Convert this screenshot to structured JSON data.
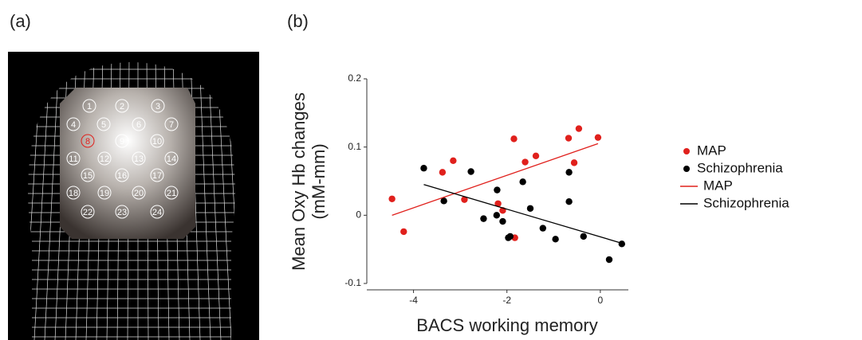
{
  "panel_a": {
    "label": "(a)",
    "channels": [
      {
        "label": "1",
        "color": "#ffffff"
      },
      {
        "label": "2",
        "color": "#ffffff"
      },
      {
        "label": "3",
        "color": "#ffffff"
      },
      {
        "label": "4",
        "color": "#ffffff"
      },
      {
        "label": "5",
        "color": "#ffffff"
      },
      {
        "label": "6",
        "color": "#ffffff"
      },
      {
        "label": "7",
        "color": "#ffffff"
      },
      {
        "label": "8",
        "color": "#e0201c"
      },
      {
        "label": "9",
        "color": "#ffffff"
      },
      {
        "label": "10",
        "color": "#ffffff"
      },
      {
        "label": "11",
        "color": "#ffffff"
      },
      {
        "label": "12",
        "color": "#ffffff"
      },
      {
        "label": "13",
        "color": "#ffffff"
      },
      {
        "label": "14",
        "color": "#ffffff"
      },
      {
        "label": "15",
        "color": "#ffffff"
      },
      {
        "label": "16",
        "color": "#ffffff"
      },
      {
        "label": "17",
        "color": "#ffffff"
      },
      {
        "label": "18",
        "color": "#ffffff"
      },
      {
        "label": "19",
        "color": "#ffffff"
      },
      {
        "label": "20",
        "color": "#ffffff"
      },
      {
        "label": "21",
        "color": "#ffffff"
      },
      {
        "label": "22",
        "color": "#ffffff"
      },
      {
        "label": "23",
        "color": "#ffffff"
      },
      {
        "label": "24",
        "color": "#ffffff"
      }
    ]
  },
  "chart_data": {
    "type": "scatter",
    "panel_label": "(b)",
    "xlabel": "BACS working memory",
    "ylabel": [
      "Mean Oxy Hb changes",
      "(mM-mm)"
    ],
    "xlim": [
      -5,
      0.6
    ],
    "ylim": [
      -0.1,
      0.2
    ],
    "xticks": [
      -4,
      -2,
      0
    ],
    "yticks": [
      -0.1,
      0,
      0.1,
      0.2
    ],
    "series": [
      {
        "name": "MAP",
        "color": "#e0201c",
        "mode": "markers",
        "x": [
          -4.46,
          -4.21,
          -3.38,
          -3.15,
          -2.91,
          -1.85,
          -2.19,
          -2.09,
          -1.83,
          -1.38,
          -1.61,
          -0.68,
          -0.46,
          -0.56,
          -0.05
        ],
        "values": [
          0.024,
          -0.024,
          0.063,
          0.08,
          0.023,
          0.112,
          0.017,
          0.007,
          -0.033,
          0.087,
          0.078,
          0.113,
          0.127,
          0.077,
          0.114
        ]
      },
      {
        "name": "Schizophrenia",
        "color": "#000000",
        "mode": "markers",
        "x": [
          -3.78,
          -3.35,
          -2.77,
          -2.5,
          -2.21,
          -2.22,
          -2.09,
          -1.93,
          -1.97,
          -1.66,
          -1.5,
          -1.23,
          -0.96,
          -0.67,
          -0.67,
          -0.36,
          0.19,
          0.46
        ],
        "values": [
          0.069,
          0.021,
          0.064,
          -0.005,
          0.037,
          0,
          -0.009,
          -0.031,
          -0.033,
          0.049,
          0.01,
          -0.019,
          -0.035,
          0.063,
          0.02,
          -0.031,
          -0.065,
          -0.042
        ]
      },
      {
        "name": "MAP",
        "color": "#e0201c",
        "mode": "line",
        "x": [
          -4.46,
          -0.05
        ],
        "values": [
          0,
          0.105
        ]
      },
      {
        "name": "Schizophrenia",
        "color": "#000000",
        "mode": "line",
        "x": [
          -3.78,
          0.46
        ],
        "values": [
          0.045,
          -0.041
        ]
      }
    ]
  }
}
